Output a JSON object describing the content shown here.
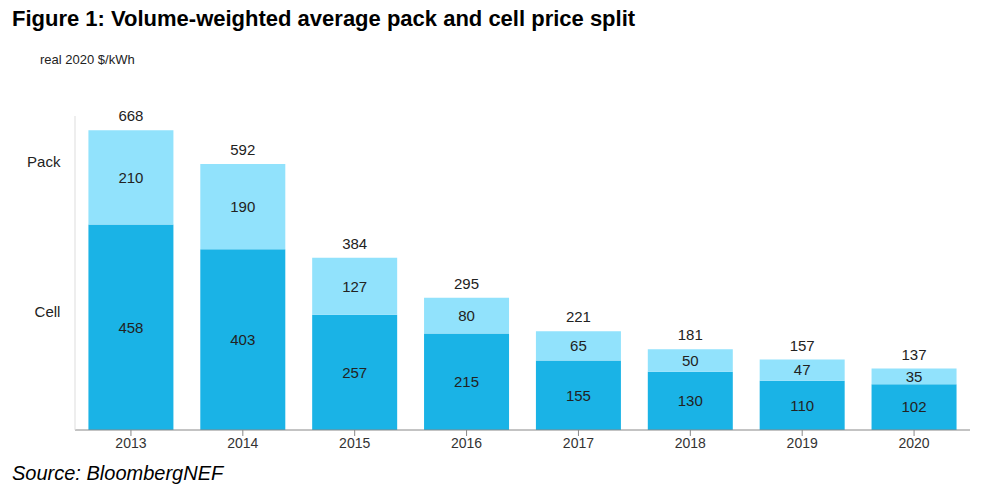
{
  "chart_data": {
    "type": "bar",
    "title": "Figure 1: Volume-weighted average pack and cell price split",
    "subtitle": "real 2020 $/kWh",
    "source": "Source: BloombergNEF",
    "categories": [
      "2013",
      "2014",
      "2015",
      "2016",
      "2017",
      "2018",
      "2019",
      "2020"
    ],
    "series": [
      {
        "name": "Cell",
        "color": "#1ab3e6",
        "values": [
          458,
          403,
          257,
          215,
          155,
          130,
          110,
          102
        ]
      },
      {
        "name": "Pack",
        "color": "#91e2fc",
        "values": [
          210,
          190,
          127,
          80,
          65,
          50,
          47,
          35
        ]
      }
    ],
    "totals": [
      668,
      592,
      384,
      295,
      221,
      181,
      157,
      137
    ],
    "ylim": [
      0,
      700
    ],
    "stacked": true,
    "data_labels": true,
    "tick_labels": "x",
    "grid": false
  }
}
